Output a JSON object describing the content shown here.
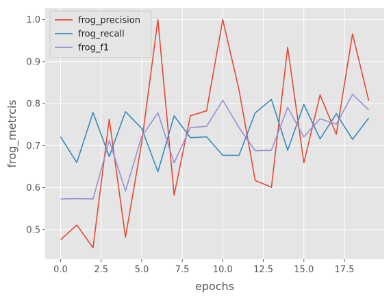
{
  "chart_data": {
    "type": "line",
    "xlabel": "epochs",
    "ylabel": "frog_metrcis",
    "xlim": [
      -0.95,
      19.95
    ],
    "ylim": [
      0.4296,
      1.0272
    ],
    "xticks": [
      0.0,
      2.5,
      5.0,
      7.5,
      10.0,
      12.5,
      15.0,
      17.5
    ],
    "xtick_labels": [
      "0.0",
      "2.5",
      "5.0",
      "7.5",
      "10.0",
      "12.5",
      "15.0",
      "17.5"
    ],
    "yticks": [
      0.5,
      0.6,
      0.7,
      0.8,
      0.9,
      1.0
    ],
    "ytick_labels": [
      "0.5",
      "0.6",
      "0.7",
      "0.8",
      "0.9",
      "1.0"
    ],
    "grid": true,
    "legend_position": "top-left",
    "x": [
      0,
      1,
      2,
      3,
      4,
      5,
      6,
      7,
      8,
      9,
      10,
      11,
      12,
      13,
      14,
      15,
      16,
      17,
      18,
      19
    ],
    "series": [
      {
        "name": "frog_precision",
        "color": "#E24A33",
        "values": [
          0.476,
          0.511,
          0.457,
          0.763,
          0.482,
          0.707,
          1.0,
          0.582,
          0.771,
          0.783,
          1.0,
          0.833,
          0.617,
          0.601,
          0.934,
          0.659,
          0.821,
          0.727,
          0.966,
          0.807
        ]
      },
      {
        "name": "frog_recall",
        "color": "#348ABD",
        "values": [
          0.721,
          0.66,
          0.779,
          0.674,
          0.781,
          0.741,
          0.638,
          0.771,
          0.719,
          0.721,
          0.677,
          0.677,
          0.778,
          0.81,
          0.689,
          0.798,
          0.716,
          0.776,
          0.715,
          0.766
        ]
      },
      {
        "name": "frog_f1",
        "color": "#988ED5",
        "values": [
          0.573,
          0.574,
          0.573,
          0.712,
          0.592,
          0.722,
          0.778,
          0.659,
          0.743,
          0.746,
          0.808,
          0.743,
          0.688,
          0.689,
          0.791,
          0.721,
          0.764,
          0.751,
          0.822,
          0.785
        ]
      }
    ]
  }
}
